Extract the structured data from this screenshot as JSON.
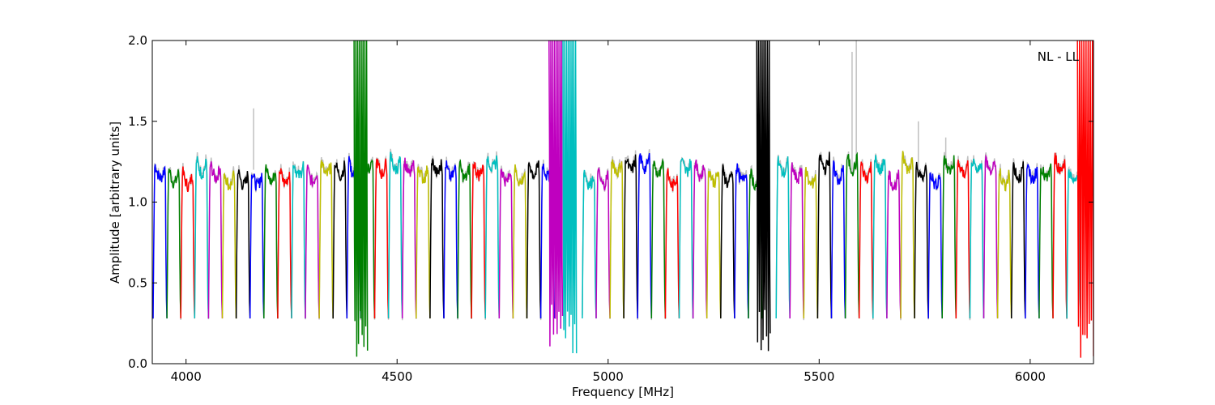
{
  "chart_data": {
    "type": "line",
    "title": "",
    "xlabel": "Frequency [MHz]",
    "ylabel": "Amplitude [arbitrary units]",
    "xlim": [
      3920,
      6150
    ],
    "ylim": [
      0.0,
      2.0
    ],
    "xticks": [
      4000,
      4500,
      5000,
      5500,
      6000
    ],
    "yticks": [
      0.0,
      0.5,
      1.0,
      1.5,
      2.0
    ],
    "xtick_labels": [
      "4000",
      "4500",
      "5000",
      "5500",
      "6000"
    ],
    "ytick_labels": [
      "0.0",
      "0.5",
      "1.0",
      "1.5",
      "2.0"
    ],
    "annotation": "NL - LL",
    "annotation_position": "top-right",
    "grid": false,
    "legend": false,
    "colors": [
      "#0000ff",
      "#008000",
      "#ff0000",
      "#00bfbf",
      "#bf00bf",
      "#bfbf00",
      "#000000"
    ],
    "background_color": "#c0c0c0",
    "band_start": 3922,
    "band_width": 32.8,
    "band_count": 68,
    "typical_level": 1.2,
    "typical_dip": 0.28,
    "outlier_bands": [
      {
        "x_start": 4398,
        "x_end": 4430,
        "y_min": 0.03,
        "y_max": 2.0,
        "color": "#008000"
      },
      {
        "x_start": 4860,
        "x_end": 4892,
        "y_min": 0.07,
        "y_max": 2.0,
        "color": "#bf00bf"
      },
      {
        "x_start": 4893,
        "x_end": 4925,
        "y_min": 0.03,
        "y_max": 2.0,
        "color": "#00bfbf"
      },
      {
        "x_start": 5352,
        "x_end": 5384,
        "y_min": 0.07,
        "y_max": 2.0,
        "color": "#000000"
      },
      {
        "x_start": 6112,
        "x_end": 6150,
        "y_min": 0.01,
        "y_max": 2.0,
        "color": "#ff0000"
      }
    ],
    "background_spikes": [
      {
        "x": 4160,
        "y": 1.58
      },
      {
        "x": 5578,
        "y": 1.93
      },
      {
        "x": 5588,
        "y": 2.0
      },
      {
        "x": 5735,
        "y": 1.5
      },
      {
        "x": 5800,
        "y": 1.4
      }
    ]
  }
}
